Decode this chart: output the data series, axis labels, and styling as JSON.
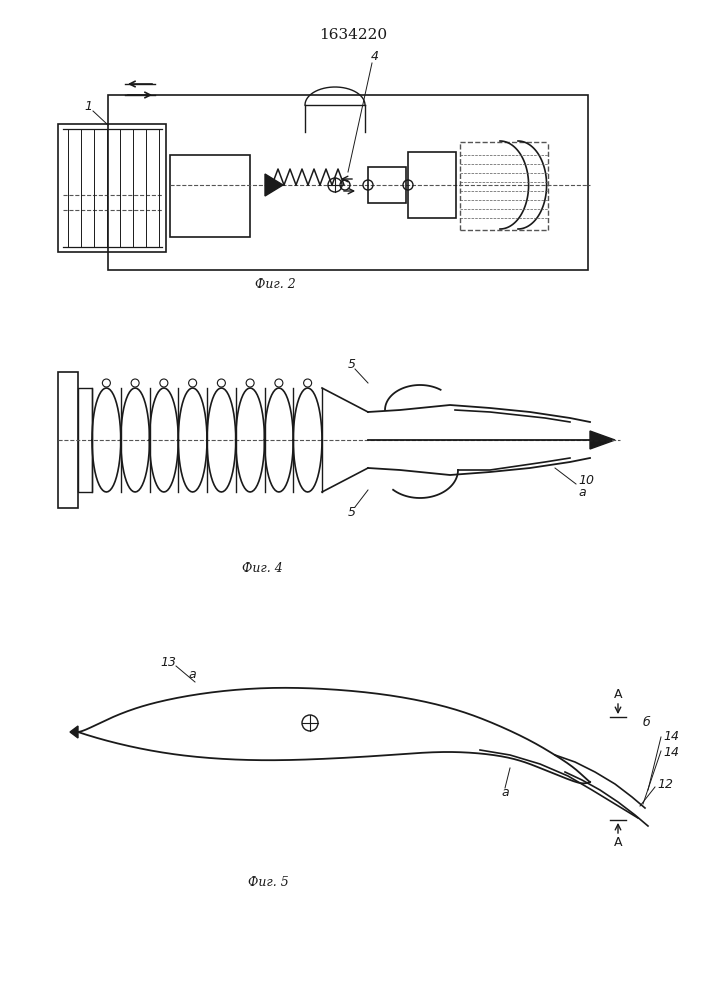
{
  "title": "1634220",
  "title_fontsize": 11,
  "fig2_label": "Фиг. 2",
  "fig4_label": "Фиг. 4",
  "fig5_label": "Фиг. 5",
  "bg_color": "#ffffff",
  "line_color": "#1a1a1a",
  "dashed_color": "#555555"
}
